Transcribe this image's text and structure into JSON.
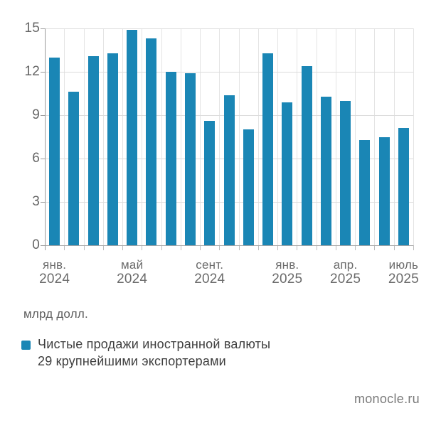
{
  "chart": {
    "unit_label": "млрд долл.",
    "legend": {
      "line1": "Чистые продажи иностранной валюты",
      "line2": "29 крупнейшими экспортерами"
    }
  },
  "footer": {
    "source": "monocle.ru"
  },
  "chart_data": {
    "type": "bar",
    "title": "",
    "series_name": "Чистые продажи иностранной валюты 29 крупнейшими экспортерами",
    "unit": "млрд долл.",
    "categories": [
      "янв. 2024",
      "февр. 2024",
      "март 2024",
      "апр. 2024",
      "май 2024",
      "июнь 2024",
      "июль 2024",
      "авг. 2024",
      "сент. 2024",
      "окт. 2024",
      "нояб. 2024",
      "дек. 2024",
      "янв. 2025",
      "февр. 2025",
      "март 2025",
      "апр. 2025",
      "май 2025",
      "июнь 2025",
      "июль 2025"
    ],
    "values": [
      13.0,
      10.6,
      13.1,
      13.3,
      14.9,
      14.3,
      12.0,
      11.9,
      8.6,
      10.4,
      8.0,
      13.3,
      9.9,
      12.4,
      10.3,
      10.0,
      7.3,
      7.5,
      8.1
    ],
    "x_tick_labels": [
      {
        "index": 0,
        "line1": "янв.",
        "line2": "2024"
      },
      {
        "index": 4,
        "line1": "май",
        "line2": "2024"
      },
      {
        "index": 8,
        "line1": "сент.",
        "line2": "2024"
      },
      {
        "index": 12,
        "line1": "янв.",
        "line2": "2025"
      },
      {
        "index": 15,
        "line1": "апр.",
        "line2": "2025"
      },
      {
        "index": 18,
        "line1": "июль",
        "line2": "2025"
      }
    ],
    "y_ticks": [
      0,
      3,
      6,
      9,
      12,
      15
    ],
    "ylim": [
      0,
      15
    ],
    "xlabel": "",
    "ylabel": "млрд долл.",
    "grid": true,
    "legend_position": "bottom-left",
    "bar_color": "#1a86b5"
  }
}
